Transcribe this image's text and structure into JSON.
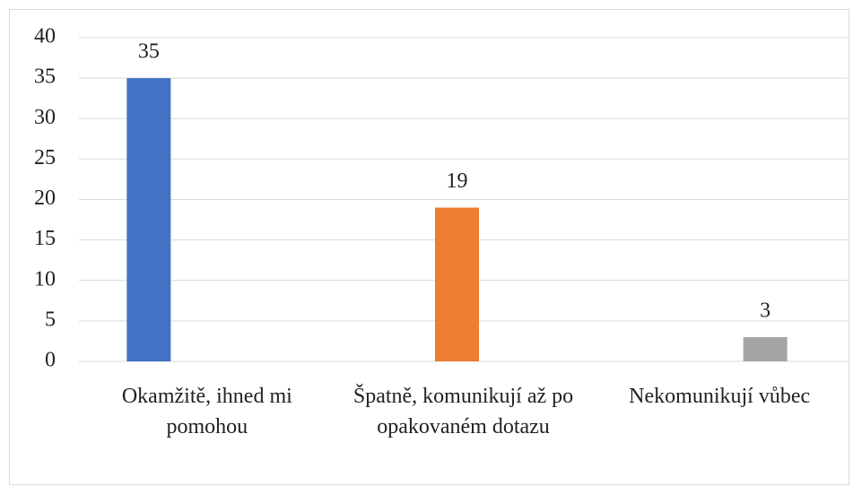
{
  "chart_data": {
    "type": "bar",
    "categories": [
      "Okamžitě, ihned mi pomohou",
      "Špatně, komunikují až po opakovaném dotazu",
      "Nekomunikují vůbec"
    ],
    "values": [
      35,
      19,
      3
    ],
    "colors": [
      "#4472c4",
      "#ed7d31",
      "#a5a5a5"
    ],
    "ylim": [
      0,
      40
    ],
    "yticks": [
      0,
      5,
      10,
      15,
      20,
      25,
      30,
      35,
      40
    ],
    "grid": true
  }
}
